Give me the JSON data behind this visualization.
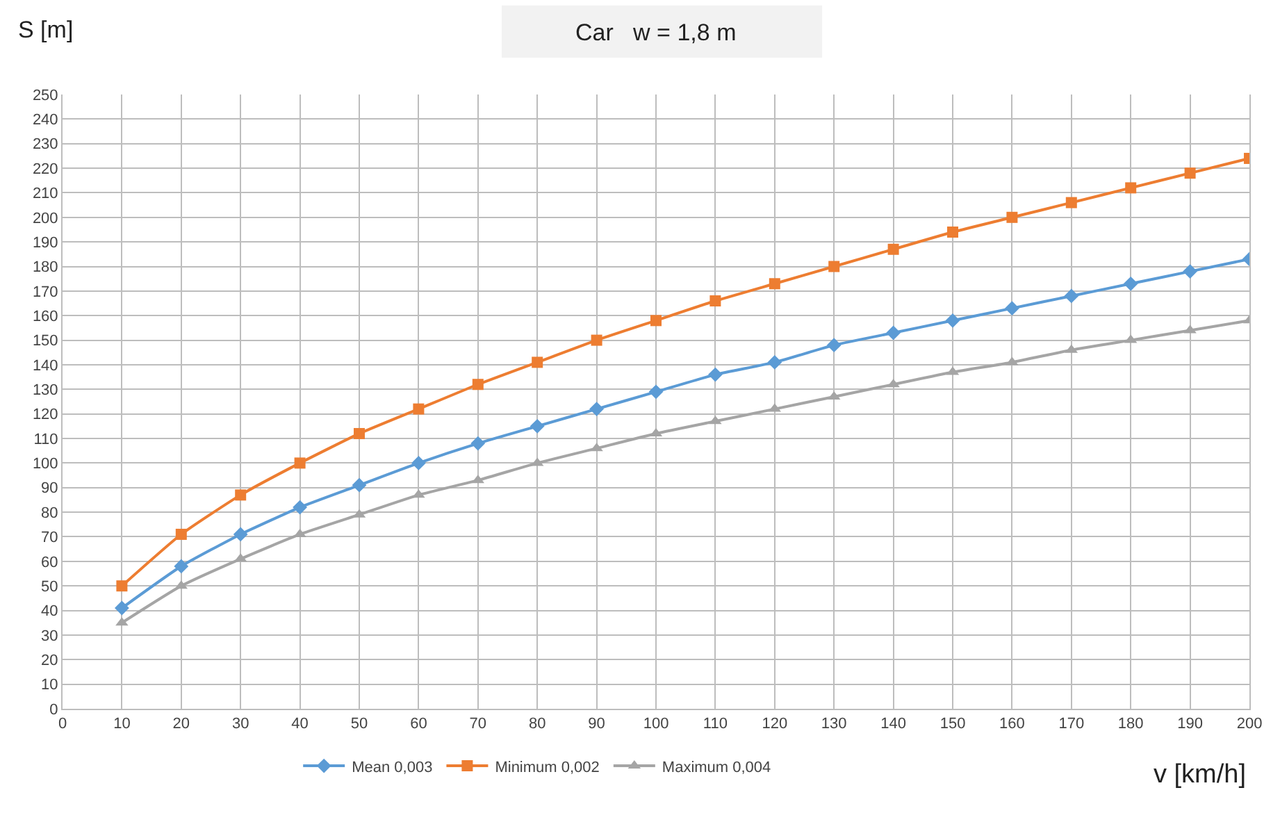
{
  "chart_data": {
    "type": "line",
    "title": "Car   w = 1,8 m",
    "ylabel": "S [m]",
    "xlabel": "v [km/h]",
    "x": [
      10,
      20,
      30,
      40,
      50,
      60,
      70,
      80,
      90,
      100,
      110,
      120,
      130,
      140,
      150,
      160,
      170,
      180,
      190,
      200
    ],
    "series": [
      {
        "name": "Mean 0,003",
        "color": "#5b9bd5",
        "marker": "diamond",
        "values": [
          41,
          58,
          71,
          82,
          91,
          100,
          108,
          115,
          122,
          129,
          136,
          141,
          148,
          153,
          158,
          163,
          168,
          173,
          178,
          183
        ]
      },
      {
        "name": "Minimum 0,002",
        "color": "#ed7d31",
        "marker": "square",
        "values": [
          50,
          71,
          87,
          100,
          112,
          122,
          132,
          141,
          150,
          158,
          166,
          173,
          180,
          187,
          194,
          200,
          206,
          212,
          218,
          224
        ]
      },
      {
        "name": "Maximum 0,004",
        "color": "#a5a5a5",
        "marker": "triangle",
        "values": [
          35,
          50,
          61,
          71,
          79,
          87,
          93,
          100,
          106,
          112,
          117,
          122,
          127,
          132,
          137,
          141,
          146,
          150,
          154,
          158
        ]
      }
    ],
    "xlim": [
      0,
      200
    ],
    "xticks": [
      0,
      10,
      20,
      30,
      40,
      50,
      60,
      70,
      80,
      90,
      100,
      110,
      120,
      130,
      140,
      150,
      160,
      170,
      180,
      190,
      200
    ],
    "ylim": [
      0,
      250
    ],
    "yticks": [
      0,
      10,
      20,
      30,
      40,
      50,
      60,
      70,
      80,
      90,
      100,
      110,
      120,
      130,
      140,
      150,
      160,
      170,
      180,
      190,
      200,
      210,
      220,
      230,
      240,
      250
    ],
    "grid": true,
    "legend": "bottom",
    "line_style": "solid"
  }
}
